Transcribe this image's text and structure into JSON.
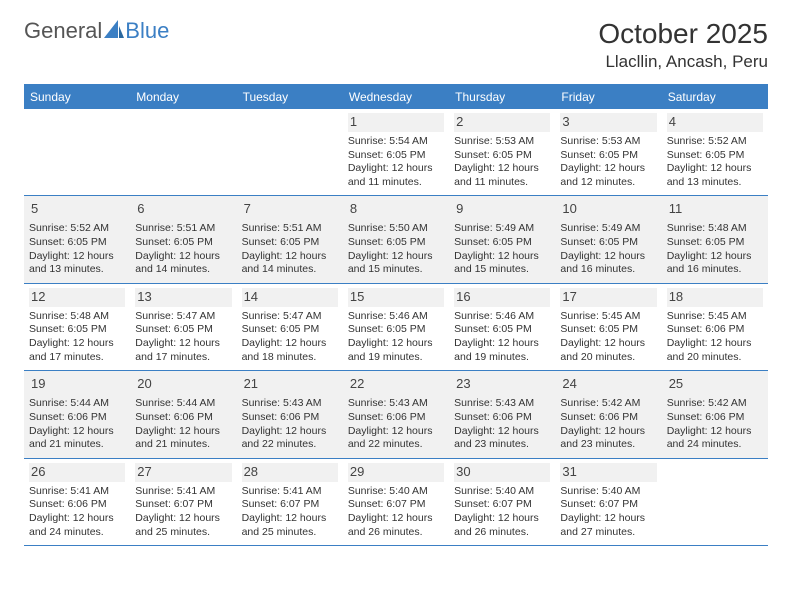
{
  "logo": {
    "text1": "General",
    "text2": "Blue"
  },
  "title": "October 2025",
  "location": "Llacllin, Ancash, Peru",
  "colors": {
    "header_bg": "#3b7fc4",
    "header_text": "#ffffff",
    "border": "#3b7fc4",
    "shade": "#f1f1f1",
    "text": "#333333"
  },
  "day_labels": [
    "Sunday",
    "Monday",
    "Tuesday",
    "Wednesday",
    "Thursday",
    "Friday",
    "Saturday"
  ],
  "weeks": [
    [
      {
        "empty": true
      },
      {
        "empty": true
      },
      {
        "empty": true
      },
      {
        "num": "1",
        "sunrise": "5:54 AM",
        "sunset": "6:05 PM",
        "daylight": "12 hours and 11 minutes."
      },
      {
        "num": "2",
        "sunrise": "5:53 AM",
        "sunset": "6:05 PM",
        "daylight": "12 hours and 11 minutes."
      },
      {
        "num": "3",
        "sunrise": "5:53 AM",
        "sunset": "6:05 PM",
        "daylight": "12 hours and 12 minutes."
      },
      {
        "num": "4",
        "sunrise": "5:52 AM",
        "sunset": "6:05 PM",
        "daylight": "12 hours and 13 minutes."
      }
    ],
    [
      {
        "num": "5",
        "sunrise": "5:52 AM",
        "sunset": "6:05 PM",
        "daylight": "12 hours and 13 minutes."
      },
      {
        "num": "6",
        "sunrise": "5:51 AM",
        "sunset": "6:05 PM",
        "daylight": "12 hours and 14 minutes."
      },
      {
        "num": "7",
        "sunrise": "5:51 AM",
        "sunset": "6:05 PM",
        "daylight": "12 hours and 14 minutes."
      },
      {
        "num": "8",
        "sunrise": "5:50 AM",
        "sunset": "6:05 PM",
        "daylight": "12 hours and 15 minutes."
      },
      {
        "num": "9",
        "sunrise": "5:49 AM",
        "sunset": "6:05 PM",
        "daylight": "12 hours and 15 minutes."
      },
      {
        "num": "10",
        "sunrise": "5:49 AM",
        "sunset": "6:05 PM",
        "daylight": "12 hours and 16 minutes."
      },
      {
        "num": "11",
        "sunrise": "5:48 AM",
        "sunset": "6:05 PM",
        "daylight": "12 hours and 16 minutes."
      }
    ],
    [
      {
        "num": "12",
        "sunrise": "5:48 AM",
        "sunset": "6:05 PM",
        "daylight": "12 hours and 17 minutes."
      },
      {
        "num": "13",
        "sunrise": "5:47 AM",
        "sunset": "6:05 PM",
        "daylight": "12 hours and 17 minutes."
      },
      {
        "num": "14",
        "sunrise": "5:47 AM",
        "sunset": "6:05 PM",
        "daylight": "12 hours and 18 minutes."
      },
      {
        "num": "15",
        "sunrise": "5:46 AM",
        "sunset": "6:05 PM",
        "daylight": "12 hours and 19 minutes."
      },
      {
        "num": "16",
        "sunrise": "5:46 AM",
        "sunset": "6:05 PM",
        "daylight": "12 hours and 19 minutes."
      },
      {
        "num": "17",
        "sunrise": "5:45 AM",
        "sunset": "6:05 PM",
        "daylight": "12 hours and 20 minutes."
      },
      {
        "num": "18",
        "sunrise": "5:45 AM",
        "sunset": "6:06 PM",
        "daylight": "12 hours and 20 minutes."
      }
    ],
    [
      {
        "num": "19",
        "sunrise": "5:44 AM",
        "sunset": "6:06 PM",
        "daylight": "12 hours and 21 minutes."
      },
      {
        "num": "20",
        "sunrise": "5:44 AM",
        "sunset": "6:06 PM",
        "daylight": "12 hours and 21 minutes."
      },
      {
        "num": "21",
        "sunrise": "5:43 AM",
        "sunset": "6:06 PM",
        "daylight": "12 hours and 22 minutes."
      },
      {
        "num": "22",
        "sunrise": "5:43 AM",
        "sunset": "6:06 PM",
        "daylight": "12 hours and 22 minutes."
      },
      {
        "num": "23",
        "sunrise": "5:43 AM",
        "sunset": "6:06 PM",
        "daylight": "12 hours and 23 minutes."
      },
      {
        "num": "24",
        "sunrise": "5:42 AM",
        "sunset": "6:06 PM",
        "daylight": "12 hours and 23 minutes."
      },
      {
        "num": "25",
        "sunrise": "5:42 AM",
        "sunset": "6:06 PM",
        "daylight": "12 hours and 24 minutes."
      }
    ],
    [
      {
        "num": "26",
        "sunrise": "5:41 AM",
        "sunset": "6:06 PM",
        "daylight": "12 hours and 24 minutes."
      },
      {
        "num": "27",
        "sunrise": "5:41 AM",
        "sunset": "6:07 PM",
        "daylight": "12 hours and 25 minutes."
      },
      {
        "num": "28",
        "sunrise": "5:41 AM",
        "sunset": "6:07 PM",
        "daylight": "12 hours and 25 minutes."
      },
      {
        "num": "29",
        "sunrise": "5:40 AM",
        "sunset": "6:07 PM",
        "daylight": "12 hours and 26 minutes."
      },
      {
        "num": "30",
        "sunrise": "5:40 AM",
        "sunset": "6:07 PM",
        "daylight": "12 hours and 26 minutes."
      },
      {
        "num": "31",
        "sunrise": "5:40 AM",
        "sunset": "6:07 PM",
        "daylight": "12 hours and 27 minutes."
      },
      {
        "empty": true
      }
    ]
  ],
  "labels": {
    "sunrise": "Sunrise: ",
    "sunset": "Sunset: ",
    "daylight": "Daylight: "
  }
}
